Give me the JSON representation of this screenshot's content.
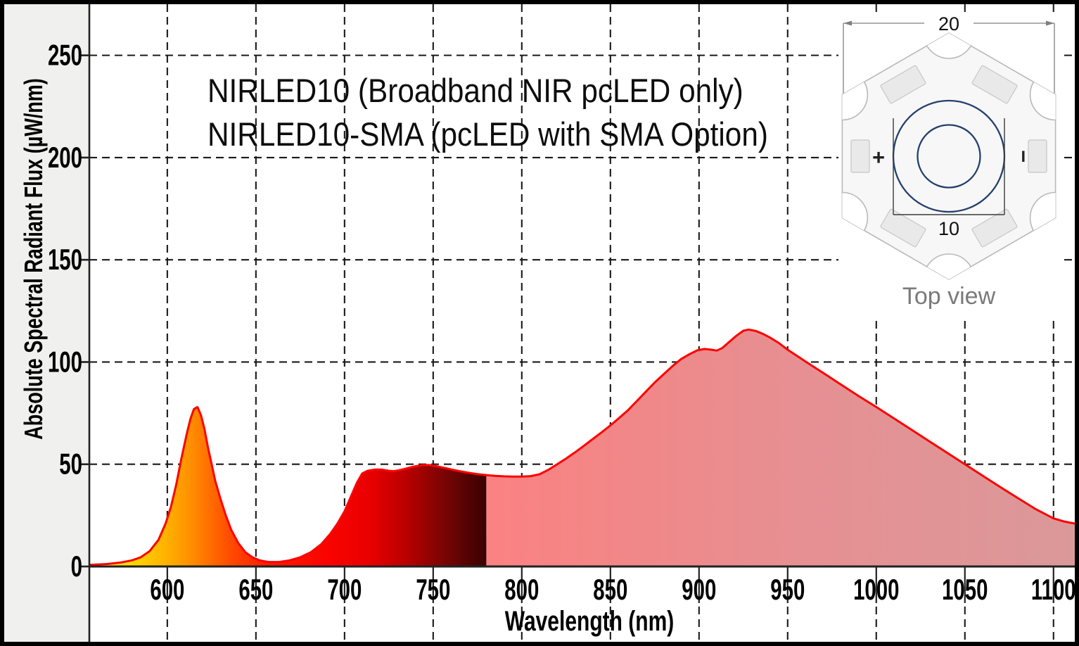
{
  "figure": {
    "title_line1": "NIRLED10 (Broadband NIR pcLED only)",
    "title_line2": "NIRLED10-SMA (pcLED with SMA Option)"
  },
  "chart": {
    "x_axis": {
      "label": "Wavelength (nm)",
      "ticks": [
        600,
        650,
        700,
        750,
        800,
        850,
        900,
        950,
        1000,
        1050,
        1100
      ],
      "min": 556,
      "max": 1112
    },
    "y_axis": {
      "label": "Absolute Spectral Radiant Flux (µW/nm)",
      "ticks": [
        0,
        50,
        100,
        150,
        200,
        250
      ],
      "min": 0,
      "max": 275
    }
  },
  "chart_data": {
    "type": "area",
    "title": "NIRLED10 (Broadband NIR pcLED only) / NIRLED10-SMA (pcLED with SMA Option)",
    "xlabel": "Wavelength (nm)",
    "ylabel": "Absolute Spectral Radiant Flux (µW/nm)",
    "xlim": [
      556,
      1112
    ],
    "ylim": [
      0,
      275
    ],
    "grid": true,
    "visible_nir_boundary_nm": 780,
    "series": [
      {
        "name": "Absolute spectral radiant flux",
        "points": [
          [
            556,
            0.8
          ],
          [
            566,
            1.2
          ],
          [
            574,
            2
          ],
          [
            580,
            3
          ],
          [
            585,
            4.5
          ],
          [
            590,
            7.5
          ],
          [
            595,
            13
          ],
          [
            599,
            21
          ],
          [
            602,
            29
          ],
          [
            605,
            40
          ],
          [
            608,
            53
          ],
          [
            611,
            65
          ],
          [
            613,
            72
          ],
          [
            615,
            77
          ],
          [
            617,
            78
          ],
          [
            619,
            74
          ],
          [
            621,
            67
          ],
          [
            623,
            58
          ],
          [
            625,
            50
          ],
          [
            627,
            42
          ],
          [
            630,
            33
          ],
          [
            633,
            25
          ],
          [
            636,
            18
          ],
          [
            640,
            11.5
          ],
          [
            644,
            7
          ],
          [
            648,
            4.5
          ],
          [
            652,
            3
          ],
          [
            657,
            2.2
          ],
          [
            663,
            2.2
          ],
          [
            669,
            3
          ],
          [
            675,
            4.5
          ],
          [
            681,
            7
          ],
          [
            687,
            11
          ],
          [
            692,
            16
          ],
          [
            696,
            21
          ],
          [
            700,
            27
          ],
          [
            704,
            35
          ],
          [
            707,
            41
          ],
          [
            710,
            45.5
          ],
          [
            713,
            46.8
          ],
          [
            717,
            47.4
          ],
          [
            721,
            47.4
          ],
          [
            725,
            46.8
          ],
          [
            728,
            46.6
          ],
          [
            732,
            47.3
          ],
          [
            736,
            48.2
          ],
          [
            740,
            49
          ],
          [
            744,
            49.6
          ],
          [
            748,
            49.6
          ],
          [
            752,
            49
          ],
          [
            756,
            48.3
          ],
          [
            760,
            47.5
          ],
          [
            765,
            46.6
          ],
          [
            770,
            45.8
          ],
          [
            775,
            45.2
          ],
          [
            780,
            44.7
          ],
          [
            785,
            44.3
          ],
          [
            790,
            44.1
          ],
          [
            795,
            44
          ],
          [
            800,
            44
          ],
          [
            805,
            44.2
          ],
          [
            810,
            45.1
          ],
          [
            815,
            47.3
          ],
          [
            820,
            50
          ],
          [
            825,
            52.8
          ],
          [
            830,
            55.8
          ],
          [
            835,
            59
          ],
          [
            840,
            62.3
          ],
          [
            845,
            65.6
          ],
          [
            850,
            69
          ],
          [
            855,
            72.7
          ],
          [
            860,
            76.5
          ],
          [
            865,
            81
          ],
          [
            870,
            85.5
          ],
          [
            875,
            90
          ],
          [
            880,
            94
          ],
          [
            885,
            98
          ],
          [
            890,
            101.5
          ],
          [
            895,
            104
          ],
          [
            899,
            105.7
          ],
          [
            903,
            106.4
          ],
          [
            907,
            106
          ],
          [
            910,
            105.6
          ],
          [
            913,
            106.8
          ],
          [
            917,
            109.8
          ],
          [
            921,
            112.8
          ],
          [
            925,
            115.3
          ],
          [
            928,
            115.9
          ],
          [
            932,
            115.2
          ],
          [
            936,
            113.8
          ],
          [
            940,
            112
          ],
          [
            945,
            109.3
          ],
          [
            950,
            106
          ],
          [
            955,
            103.2
          ],
          [
            960,
            100.3
          ],
          [
            970,
            94.7
          ],
          [
            980,
            89
          ],
          [
            990,
            83.4
          ],
          [
            1000,
            78
          ],
          [
            1010,
            72.4
          ],
          [
            1020,
            66.8
          ],
          [
            1030,
            61.2
          ],
          [
            1040,
            55.6
          ],
          [
            1050,
            50
          ],
          [
            1060,
            44.4
          ],
          [
            1070,
            38.8
          ],
          [
            1080,
            33.4
          ],
          [
            1090,
            28
          ],
          [
            1100,
            23.5
          ],
          [
            1106,
            22
          ],
          [
            1112,
            21
          ]
        ]
      }
    ],
    "styles": {
      "line_color": "#ff0000",
      "grid_color": "#1a1a1a",
      "axis_color": "#222222",
      "tick_text_color": "#000000",
      "visible_gradient": [
        [
          556,
          "#ffe352"
        ],
        [
          580,
          "#ffd800"
        ],
        [
          600,
          "#ffb000"
        ],
        [
          615,
          "#ff8a00"
        ],
        [
          632,
          "#ff5500"
        ],
        [
          655,
          "#ff1c00"
        ],
        [
          690,
          "#fa0300"
        ],
        [
          715,
          "#e80000"
        ],
        [
          735,
          "#b80000"
        ],
        [
          755,
          "#7d0404"
        ],
        [
          770,
          "#520303"
        ],
        [
          780,
          "#3a0202"
        ]
      ],
      "nir_gradient": [
        [
          780,
          "#fb8282"
        ],
        [
          860,
          "#f18788"
        ],
        [
          960,
          "#e69093"
        ],
        [
          1112,
          "#db9899"
        ]
      ]
    }
  },
  "inset": {
    "dim_width_mm": "20",
    "dim_emitter_mm": "10",
    "positive_label": "+",
    "negative_label": "−",
    "caption": "Top view",
    "board_color": "#f7f7f7",
    "outline_color": "#b9b9b9",
    "pad_color": "#e9e9e9",
    "circle_color": "#24406e"
  }
}
